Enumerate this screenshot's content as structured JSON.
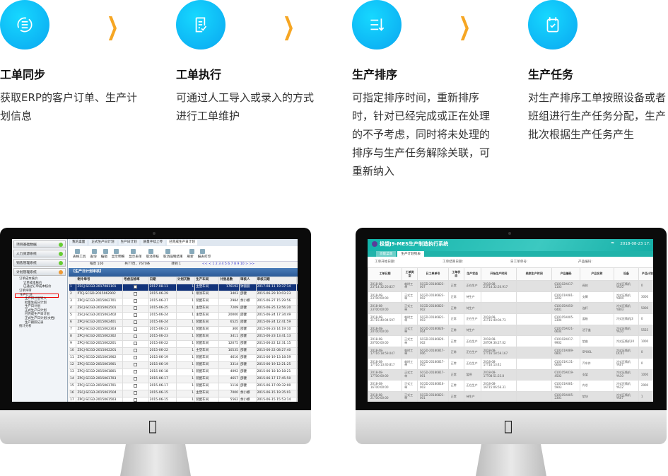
{
  "steps": [
    {
      "icon": "sync-list-icon",
      "title": "工单同步",
      "desc": "获取ERP的客户订单、生产计划信息"
    },
    {
      "icon": "document-check-icon",
      "title": "工单执行",
      "desc": "可通过人工导入或录入的方式进行工单维护"
    },
    {
      "icon": "sort-list-icon",
      "title": "生产排序",
      "desc": "可指定排序时间，重新排序时，针对已经完成或正在处理的不予考虑，同时将未处理的排序与生产任务解除关联，可重新纳入"
    },
    {
      "icon": "calendar-check-icon",
      "title": "生产任务",
      "desc": "对生产排序工单按照设备或者班组进行生产任务分配，生产批次根据生产任务产生"
    }
  ],
  "colors": {
    "accent": "#0aa6f0",
    "arrow": "#f6a623",
    "erp_header": "#2b5a97",
    "mes_header": "#12b3a9"
  },
  "erp": {
    "sidebar": [
      "项目基础数据",
      "人力资源系统",
      "销售管理系统",
      "计划管理系统"
    ],
    "tree": [
      "订单成本核价",
      "订单成本核价",
      "已通过订单成本核价",
      "订单评审",
      "生产计划",
      "生产日计划导入",
      "批量生成日计划",
      "生产日计划",
      "正式生产日计划",
      "已完成生产日计划",
      "正式生产日计划(文档)",
      "生产跟踪记录",
      "统计分析"
    ],
    "tabs": [
      "我的桌面",
      "正式生产日计划",
      "生产日计划",
      "质量手续上传",
      "已完成生产日计划"
    ],
    "toolbar": [
      "表格工具",
      "查询",
      "编辑",
      "显示明细",
      "显示表单",
      "取消审核",
      "取消强制结束",
      "刷新",
      "报表打印"
    ],
    "pager": {
      "page_size": "每页 100",
      "total": "共77页，7670条",
      "goto": "转到 1",
      "pages": "<< < 1 2 3 4 5 6 7 8 9 10 > >>"
    },
    "section": "【生产日计划审核】",
    "columns": [
      "",
      "制令单号",
      "考虑去除率",
      "日期",
      "计划天数",
      "生产车间",
      "计划总数",
      "审核人",
      "审核日期",
      "打印次数",
      "最"
    ],
    "rows": [
      [
        "1",
        "ZSCJ-SCGD-2017081101",
        "2017-08-11",
        "1",
        "主塑车间",
        "176192",
        "钟丽丽",
        "2017-08-11 19:37:14",
        "37"
      ],
      [
        "2",
        "PTCJ-SCGD-2015062902",
        "2015-06-29",
        "1",
        "喷涂车间",
        "3403",
        "邵健",
        "2015-06-29 10:03:23",
        ""
      ],
      [
        "3",
        "ZPCJ-SCGD-2015062701",
        "2015-06-27",
        "1",
        "装配车间",
        "2984",
        "余小娜",
        "2015-06-27 15:29:56",
        "2"
      ],
      [
        "4",
        "ZSCJ-SCGD-2015062501",
        "2015-06-25",
        "1",
        "主塑车间",
        "7209",
        "邵健",
        "2015-06-25 13:56:20",
        ""
      ],
      [
        "5",
        "ZSCJ-SCGD-2015062402",
        "2015-06-24",
        "1",
        "主塑车间",
        "20000",
        "邵健",
        "2015-06-24 17:34:49",
        "2"
      ],
      [
        "6",
        "ZPCJ-SCGD-2015062401",
        "2015-06-24",
        "1",
        "装配车间",
        "6525",
        "邵健",
        "2015-06-24 12:41:59",
        "1"
      ],
      [
        "7",
        "ZPCJ-SCGD-2015062303",
        "2015-06-23",
        "1",
        "装配车间",
        "300",
        "邵健",
        "2015-06-23 14:19:10",
        ""
      ],
      [
        "8",
        "ZPCJ-SCGD-2015062302",
        "2015-06-23",
        "1",
        "装配车间",
        "3411",
        "邵健",
        "2015-06-23 13:41:13",
        "1"
      ],
      [
        "9",
        "ZPCJ-SCGD-2015062201",
        "2015-06-22",
        "1",
        "装配车间",
        "12075",
        "邵健",
        "2015-06-22 12:31:15",
        "2"
      ],
      [
        "10",
        "ZSCJ-SCGD-2015062201",
        "2015-06-22",
        "1",
        "主塑车间",
        "10535",
        "邵健",
        "2015-06-22 08:27:40",
        ""
      ],
      [
        "11",
        "ZPCJ-SCGD-2015061902",
        "2015-06-19",
        "1",
        "装配车间",
        "4610",
        "邵健",
        "2015-06-19 13:18:59",
        "1"
      ],
      [
        "12",
        "ZPCJ-SCGD-2015061901",
        "2015-06-19",
        "1",
        "装配车间",
        "3314",
        "邵健",
        "2015-06-19 12:21:25",
        "1"
      ],
      [
        "13",
        "ZPCJ-SCGD-2015061801",
        "2015-06-18",
        "1",
        "装配车间",
        "4092",
        "邵健",
        "2015-06-18 10:18:21",
        "1"
      ],
      [
        "14",
        "ZPCJ-SCGD-2015061703",
        "2015-06-17",
        "1",
        "装配车间",
        "4657",
        "邵健",
        "2015-06-17 17:45:50",
        "1"
      ],
      [
        "15",
        "ZPCJ-SCGD-2015061701",
        "2015-06-17",
        "1",
        "装配车间",
        "1118",
        "邵健",
        "2015-06-17 09:32:00",
        "1"
      ],
      [
        "16",
        "ZSCJ-SCGD-2015061504",
        "2015-06-15",
        "1",
        "主塑车间",
        "7000",
        "余小娜",
        "2015-06-15 19:35:01",
        ""
      ],
      [
        "17",
        "ZPCJ-SCGD-2015061503",
        "2015-06-15",
        "1",
        "装配车间",
        "5562",
        "余小娜",
        "2015-06-15 15:53:14",
        "1"
      ]
    ]
  },
  "mes": {
    "title": "极望J9-MES生产制造执行系统",
    "datetime": "2018-08-23 17:",
    "tabs": [
      "功能菜单",
      "生产计划列表"
    ],
    "filters": [
      "工单开始日期:",
      "工单结束日期:",
      "日工单单号:",
      "产品编码:"
    ],
    "columns": [
      "工单日期",
      "工单类型",
      "日工单单号",
      "工单状态",
      "生产状态",
      "开始生产时间",
      "结束生产时间",
      "产品编码",
      "产品名称",
      "设备",
      "产品计划数量",
      "产"
    ],
    "rows": [
      [
        "2018-08-23T14:32:20.827",
        "临时工单",
        "SCGD-20180823-007",
        "正常",
        "正在生产",
        "2018-08-23T14:32:20.917",
        "",
        "010102A017-1103",
        "阀体",
        "冷式压铸机YA10",
        "0",
        ""
      ],
      [
        "2018-08-23T00:00:00",
        "正式工单",
        "SCGD-20180823-002",
        "正常",
        "待生产",
        "",
        "",
        "010101A081-3202",
        "支臂",
        "冷式压铸机YB04",
        "3000",
        ""
      ],
      [
        "2018-08-23T00:00:00",
        "正式工单",
        "SCGD-20180823-002",
        "正常",
        "待生产",
        "",
        "",
        "010105A050-0401",
        "连杆",
        "冷式压铸机YB03",
        "5000",
        ""
      ],
      [
        "2018-08-21T15:40:04.597",
        "临时工单",
        "SCGD-20180821-003",
        "正常",
        "正在生产",
        "2018-08-21T15:40:04.73",
        "",
        "010105A005-2304",
        "盖板",
        "冷式压铸机J3",
        "0",
        ""
      ],
      [
        "2018-08-20T00:00:00",
        "正式工单",
        "SCGD-20180820-004",
        "正常",
        "待生产",
        "",
        "",
        "010105A021-0604",
        "活子盖",
        "冷式压铸机YA10",
        "5555",
        ""
      ],
      [
        "2018-08-20T00:00:00",
        "正式工单",
        "SCGD-20180820-002",
        "正常",
        "正在生产",
        "2018-08-20T09:36:27.02",
        "",
        "010102A017-9902",
        "垫座",
        "冷式压铸机10",
        "1000",
        "120"
      ],
      [
        "2018-08-17T16:18:59.047",
        "临时工单",
        "SCGD-20180817-006",
        "正常",
        "正在生产",
        "2018-08-17T16:18:59.167",
        "",
        "010101A089-0801",
        "SPOOL",
        "冷式压铸机DC01",
        "0",
        ""
      ],
      [
        "2018-08-17T16:13:40.817",
        "临时工单",
        "SCGD-20180817-005",
        "正常",
        "正在生产",
        "2018-08-17T16:13:41",
        "",
        "010101A131-0666",
        "汽车件",
        "冷式压铸机YA07",
        "0",
        ""
      ],
      [
        "2018-08-17T00:00:00",
        "正式工单",
        "SCGD-20180817-001",
        "正常",
        "暂停",
        "2018-08-17T08:51:23.8",
        "",
        "010105A019-4502",
        "支架",
        "冷式压铸机YA10",
        "1000",
        "500"
      ],
      [
        "2018-08-16T00:00:00",
        "正式工单",
        "SCGD-20180816-003",
        "正常",
        "正在生产",
        "2018-08-16T15:06:56.31",
        "",
        "010101A081-5903",
        "内芯",
        "冷式压铸机YA12",
        "2000",
        "800"
      ],
      [
        "2018-08-21T00:00:00",
        "正式工单",
        "SCGD-20180821-001",
        "正常",
        "待生产",
        "",
        "",
        "010105A005-2301",
        "垫块",
        "冷式压铸机YA07",
        "1",
        ""
      ]
    ]
  }
}
